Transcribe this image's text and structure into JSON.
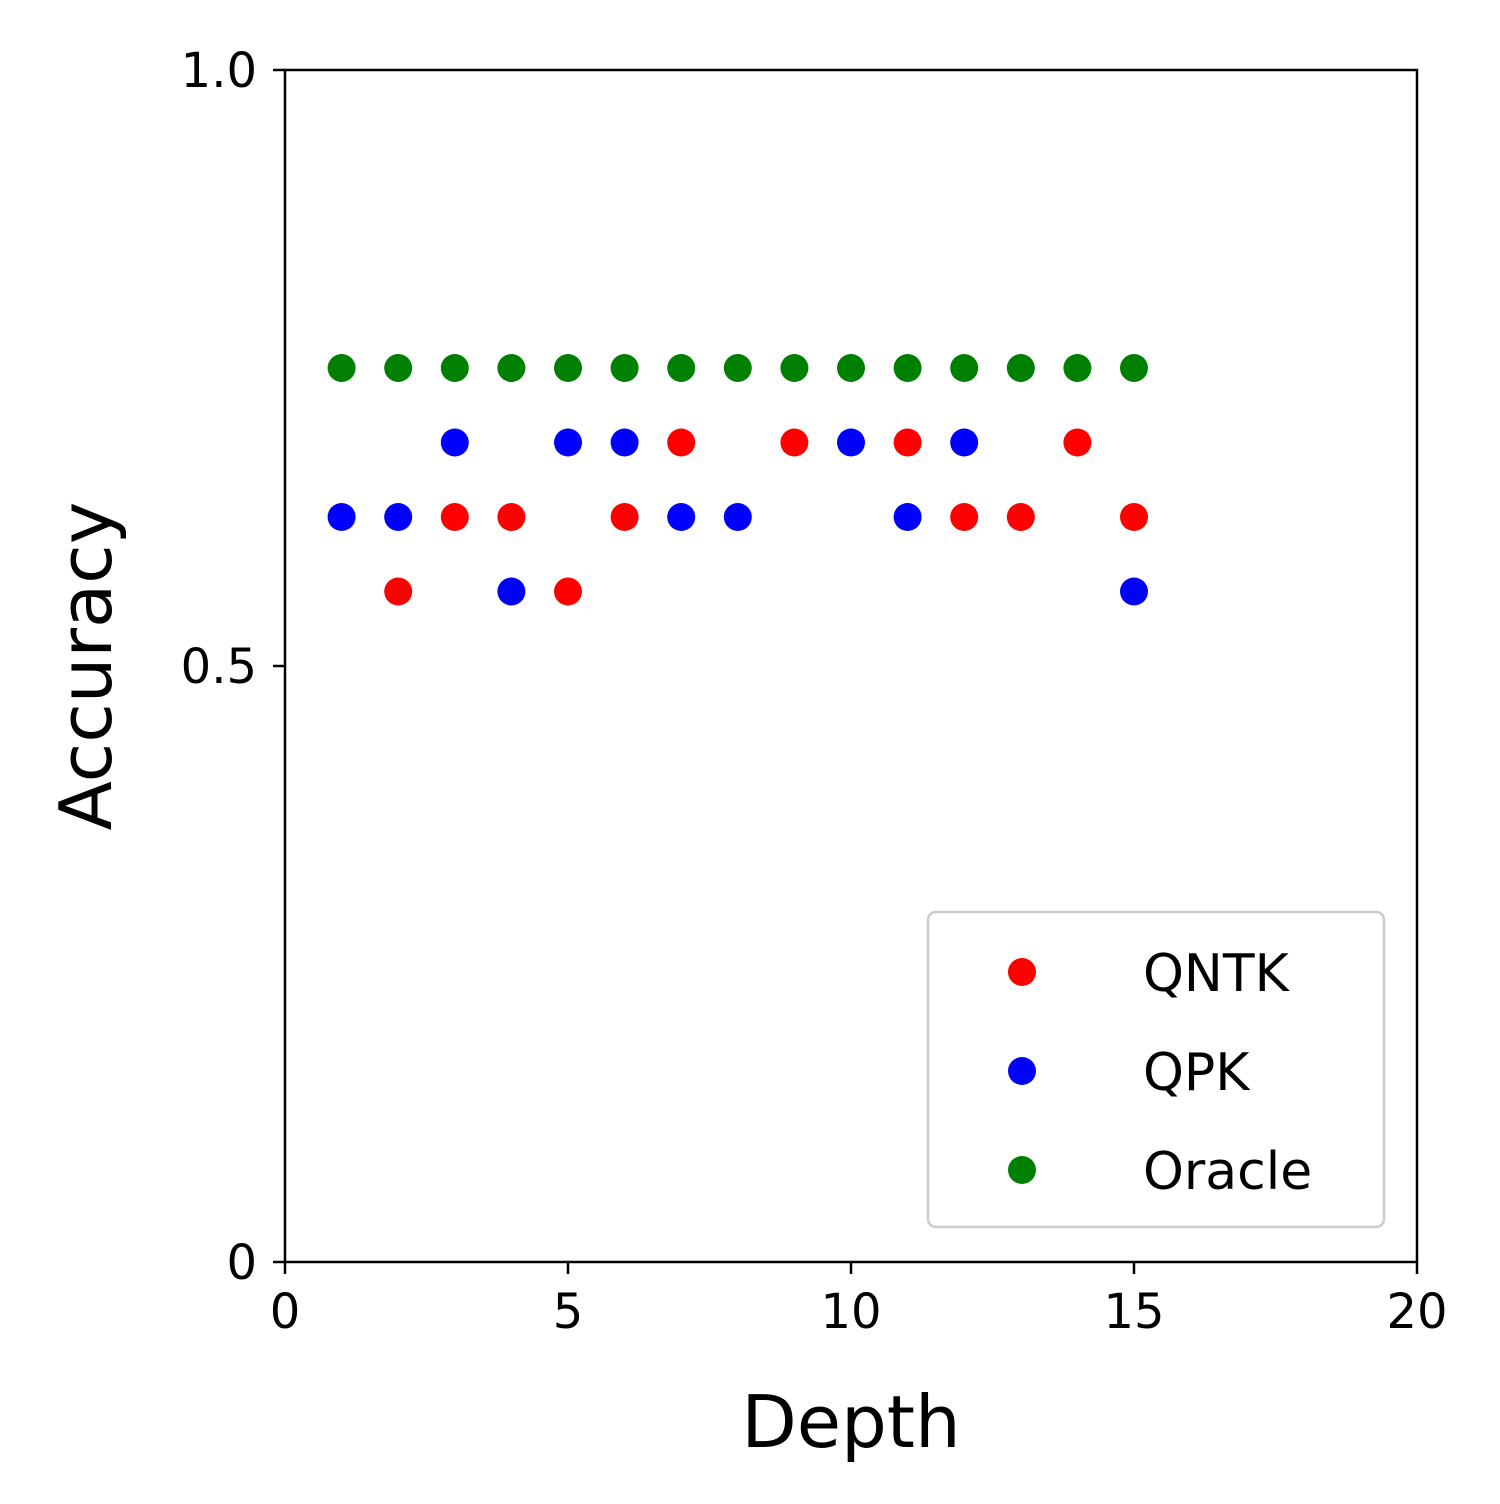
{
  "chart_data": {
    "type": "scatter",
    "title": "",
    "xlabel": "Depth",
    "ylabel": "Accuracy",
    "xlim": [
      0,
      20
    ],
    "ylim": [
      0,
      1.0
    ],
    "xticks": [
      0,
      5,
      10,
      15,
      20
    ],
    "xtick_labels": [
      "0",
      "5",
      "10",
      "15",
      "20"
    ],
    "yticks": [
      0,
      0.5,
      1.0
    ],
    "ytick_labels": [
      "0",
      "0.5",
      "1.0"
    ],
    "grid": false,
    "legend_position": "lower-right",
    "series": [
      {
        "name": "QNTK",
        "color": "#ff0000",
        "x": [
          2,
          3,
          4,
          5,
          6,
          7,
          9,
          11,
          12,
          13,
          14,
          15
        ],
        "y": [
          0.5625,
          0.625,
          0.625,
          0.5625,
          0.625,
          0.6875,
          0.6875,
          0.6875,
          0.625,
          0.625,
          0.6875,
          0.625
        ]
      },
      {
        "name": "QPK",
        "color": "#0000ff",
        "x": [
          1,
          2,
          3,
          4,
          5,
          6,
          7,
          8,
          10,
          11,
          12,
          15
        ],
        "y": [
          0.625,
          0.625,
          0.6875,
          0.5625,
          0.6875,
          0.6875,
          0.625,
          0.625,
          0.6875,
          0.625,
          0.6875,
          0.5625
        ]
      },
      {
        "name": "Oracle",
        "color": "#008000",
        "x": [
          1,
          2,
          3,
          4,
          5,
          6,
          7,
          8,
          9,
          10,
          11,
          12,
          13,
          14,
          15
        ],
        "y": [
          0.75,
          0.75,
          0.75,
          0.75,
          0.75,
          0.75,
          0.75,
          0.75,
          0.75,
          0.75,
          0.75,
          0.75,
          0.75,
          0.75,
          0.75
        ]
      }
    ]
  }
}
